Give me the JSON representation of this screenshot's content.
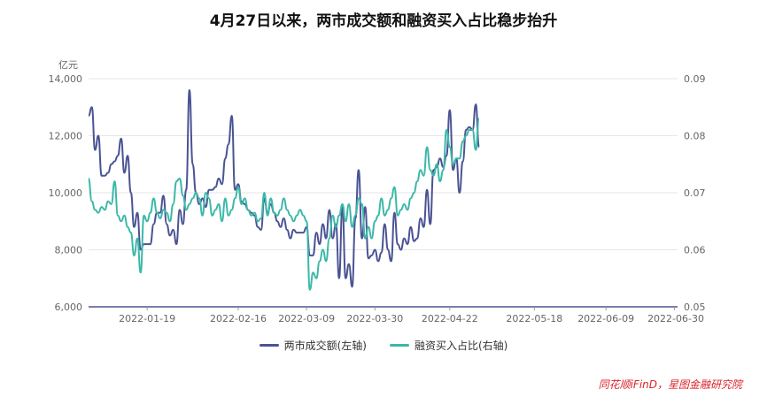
{
  "title": "4月27日以来，两市成交额和融资买入占比稳步抬升",
  "source": "同花顺iFinD，星图金融研究院",
  "chart_data": {
    "type": "line",
    "title": "4月27日以来，两市成交额和融资买入占比稳步抬升",
    "y_left_unit": "亿元",
    "y_left_lim": [
      6000,
      14000
    ],
    "y_left_ticks": [
      "6,000",
      "8,000",
      "10,000",
      "12,000",
      "14,000"
    ],
    "y_right_lim": [
      0.05,
      0.09
    ],
    "y_right_ticks": [
      "0.05",
      "0.06",
      "0.07",
      "0.08",
      "0.09"
    ],
    "x_start": "2022-01-01",
    "x_end": "2022-07-01",
    "x_ticks": [
      "2022-01-19",
      "2022-02-16",
      "2022-03-09",
      "2022-03-30",
      "2022-04-22",
      "2022-05-18",
      "2022-06-09",
      "2022-06-30"
    ],
    "grid": true,
    "legend_position": "bottom",
    "series": [
      {
        "name": "两市成交额(左轴)",
        "axis": "left",
        "color": "#4a5394",
        "points": [
          [
            "2022-01-01",
            12700
          ],
          [
            "2022-01-02",
            13000
          ],
          [
            "2022-01-03",
            11500
          ],
          [
            "2022-01-04",
            12000
          ],
          [
            "2022-01-05",
            10600
          ],
          [
            "2022-01-06",
            10600
          ],
          [
            "2022-01-07",
            10700
          ],
          [
            "2022-01-08",
            11000
          ],
          [
            "2022-01-09",
            11100
          ],
          [
            "2022-01-10",
            11300
          ],
          [
            "2022-01-11",
            11900
          ],
          [
            "2022-01-12",
            10700
          ],
          [
            "2022-01-13",
            11300
          ],
          [
            "2022-01-14",
            10000
          ],
          [
            "2022-01-15",
            8800
          ],
          [
            "2022-01-16",
            9300
          ],
          [
            "2022-01-17",
            8000
          ],
          [
            "2022-01-18",
            8200
          ],
          [
            "2022-01-19",
            8200
          ],
          [
            "2022-01-20",
            8200
          ],
          [
            "2022-01-21",
            8900
          ],
          [
            "2022-01-22",
            9300
          ],
          [
            "2022-01-23",
            9300
          ],
          [
            "2022-01-24",
            9900
          ],
          [
            "2022-01-25",
            8900
          ],
          [
            "2022-01-26",
            8500
          ],
          [
            "2022-01-27",
            8700
          ],
          [
            "2022-01-28",
            8200
          ],
          [
            "2022-01-29",
            9400
          ],
          [
            "2022-01-30",
            8900
          ],
          [
            "2022-01-31",
            10100
          ],
          [
            "2022-02-01",
            13600
          ],
          [
            "2022-02-02",
            11000
          ],
          [
            "2022-02-03",
            10000
          ],
          [
            "2022-02-04",
            9600
          ],
          [
            "2022-02-05",
            9800
          ],
          [
            "2022-02-06",
            9500
          ],
          [
            "2022-02-07",
            10100
          ],
          [
            "2022-02-08",
            10100
          ],
          [
            "2022-02-09",
            10200
          ],
          [
            "2022-02-10",
            10500
          ],
          [
            "2022-02-11",
            10300
          ],
          [
            "2022-02-12",
            11200
          ],
          [
            "2022-02-13",
            11700
          ],
          [
            "2022-02-14",
            12700
          ],
          [
            "2022-02-15",
            10100
          ],
          [
            "2022-02-16",
            10300
          ],
          [
            "2022-02-17",
            9700
          ],
          [
            "2022-02-18",
            9600
          ],
          [
            "2022-02-19",
            9400
          ],
          [
            "2022-02-20",
            9300
          ],
          [
            "2022-02-21",
            9200
          ],
          [
            "2022-02-22",
            8800
          ],
          [
            "2022-02-23",
            8700
          ],
          [
            "2022-02-24",
            9800
          ],
          [
            "2022-02-25",
            9300
          ],
          [
            "2022-02-26",
            9600
          ],
          [
            "2022-02-27",
            9300
          ],
          [
            "2022-02-28",
            9000
          ],
          [
            "2022-03-01",
            8800
          ],
          [
            "2022-03-02",
            9100
          ],
          [
            "2022-03-03",
            8700
          ],
          [
            "2022-03-04",
            8400
          ],
          [
            "2022-03-05",
            8700
          ],
          [
            "2022-03-06",
            8600
          ],
          [
            "2022-03-07",
            8600
          ],
          [
            "2022-03-08",
            8600
          ],
          [
            "2022-03-09",
            8800
          ],
          [
            "2022-03-10",
            7800
          ],
          [
            "2022-03-11",
            7800
          ],
          [
            "2022-03-12",
            8600
          ],
          [
            "2022-03-13",
            8200
          ],
          [
            "2022-03-14",
            8900
          ],
          [
            "2022-03-15",
            8400
          ],
          [
            "2022-03-16",
            9400
          ],
          [
            "2022-03-17",
            8400
          ],
          [
            "2022-03-18",
            8900
          ],
          [
            "2022-03-19",
            7000
          ],
          [
            "2022-03-20",
            9500
          ],
          [
            "2022-03-21",
            7000
          ],
          [
            "2022-03-22",
            7500
          ],
          [
            "2022-03-23",
            6700
          ],
          [
            "2022-03-24",
            9100
          ],
          [
            "2022-03-25",
            10800
          ],
          [
            "2022-03-26",
            8400
          ],
          [
            "2022-03-27",
            9500
          ],
          [
            "2022-03-28",
            7700
          ],
          [
            "2022-03-29",
            7800
          ],
          [
            "2022-03-30",
            8000
          ],
          [
            "2022-03-31",
            7600
          ],
          [
            "2022-04-01",
            7900
          ],
          [
            "2022-04-02",
            8900
          ],
          [
            "2022-04-03",
            8000
          ],
          [
            "2022-04-04",
            7600
          ],
          [
            "2022-04-05",
            9300
          ],
          [
            "2022-04-06",
            8200
          ],
          [
            "2022-04-07",
            8000
          ],
          [
            "2022-04-08",
            8400
          ],
          [
            "2022-04-09",
            8200
          ],
          [
            "2022-04-10",
            8800
          ],
          [
            "2022-04-11",
            8300
          ],
          [
            "2022-04-12",
            8400
          ],
          [
            "2022-04-13",
            9100
          ],
          [
            "2022-04-14",
            8800
          ],
          [
            "2022-04-15",
            10100
          ],
          [
            "2022-04-16",
            8900
          ],
          [
            "2022-04-17",
            10800
          ],
          [
            "2022-04-18",
            10900
          ],
          [
            "2022-04-19",
            11200
          ],
          [
            "2022-04-20",
            10900
          ],
          [
            "2022-04-21",
            11300
          ],
          [
            "2022-04-22",
            12900
          ],
          [
            "2022-04-23",
            10800
          ],
          [
            "2022-04-24",
            11200
          ],
          [
            "2022-04-25",
            10000
          ],
          [
            "2022-04-26",
            11100
          ],
          [
            "2022-04-27",
            12200
          ],
          [
            "2022-04-28",
            12300
          ],
          [
            "2022-04-29",
            12200
          ],
          [
            "2022-04-30",
            13100
          ],
          [
            "2022-05-01",
            11600
          ]
        ]
      },
      {
        "name": "融资买入占比(右轴)",
        "axis": "right",
        "color": "#3cb8a8",
        "points": [
          [
            "2022-01-01",
            0.0725
          ],
          [
            "2022-01-02",
            0.0685
          ],
          [
            "2022-01-03",
            0.067
          ],
          [
            "2022-01-04",
            0.0665
          ],
          [
            "2022-01-05",
            0.0675
          ],
          [
            "2022-01-06",
            0.067
          ],
          [
            "2022-01-07",
            0.0685
          ],
          [
            "2022-01-08",
            0.068
          ],
          [
            "2022-01-09",
            0.072
          ],
          [
            "2022-01-10",
            0.066
          ],
          [
            "2022-01-11",
            0.065
          ],
          [
            "2022-01-12",
            0.066
          ],
          [
            "2022-01-13",
            0.064
          ],
          [
            "2022-01-14",
            0.063
          ],
          [
            "2022-01-15",
            0.059
          ],
          [
            "2022-01-16",
            0.062
          ],
          [
            "2022-01-17",
            0.056
          ],
          [
            "2022-01-18",
            0.066
          ],
          [
            "2022-01-19",
            0.065
          ],
          [
            "2022-01-20",
            0.0665
          ],
          [
            "2022-01-21",
            0.069
          ],
          [
            "2022-01-22",
            0.0665
          ],
          [
            "2022-01-23",
            0.0655
          ],
          [
            "2022-01-24",
            0.067
          ],
          [
            "2022-01-25",
            0.0665
          ],
          [
            "2022-01-26",
            0.065
          ],
          [
            "2022-01-27",
            0.068
          ],
          [
            "2022-01-28",
            0.072
          ],
          [
            "2022-01-29",
            0.0725
          ],
          [
            "2022-01-30",
            0.0695
          ],
          [
            "2022-01-31",
            0.067
          ],
          [
            "2022-02-01",
            0.068
          ],
          [
            "2022-02-02",
            0.069
          ],
          [
            "2022-02-03",
            0.07
          ],
          [
            "2022-02-04",
            0.069
          ],
          [
            "2022-02-05",
            0.066
          ],
          [
            "2022-02-06",
            0.07
          ],
          [
            "2022-02-07",
            0.069
          ],
          [
            "2022-02-08",
            0.066
          ],
          [
            "2022-02-09",
            0.067
          ],
          [
            "2022-02-10",
            0.068
          ],
          [
            "2022-02-11",
            0.065
          ],
          [
            "2022-02-12",
            0.069
          ],
          [
            "2022-02-13",
            0.066
          ],
          [
            "2022-02-14",
            0.067
          ],
          [
            "2022-02-15",
            0.069
          ],
          [
            "2022-02-16",
            0.071
          ],
          [
            "2022-02-17",
            0.068
          ],
          [
            "2022-02-18",
            0.069
          ],
          [
            "2022-02-19",
            0.067
          ],
          [
            "2022-02-20",
            0.066
          ],
          [
            "2022-02-21",
            0.0665
          ],
          [
            "2022-02-22",
            0.065
          ],
          [
            "2022-02-23",
            0.0655
          ],
          [
            "2022-02-24",
            0.07
          ],
          [
            "2022-02-25",
            0.066
          ],
          [
            "2022-02-26",
            0.069
          ],
          [
            "2022-02-27",
            0.0665
          ],
          [
            "2022-02-28",
            0.066
          ],
          [
            "2022-03-01",
            0.067
          ],
          [
            "2022-03-02",
            0.069
          ],
          [
            "2022-03-03",
            0.067
          ],
          [
            "2022-03-04",
            0.066
          ],
          [
            "2022-03-05",
            0.065
          ],
          [
            "2022-03-06",
            0.066
          ],
          [
            "2022-03-07",
            0.067
          ],
          [
            "2022-03-08",
            0.066
          ],
          [
            "2022-03-09",
            0.065
          ],
          [
            "2022-03-10",
            0.053
          ],
          [
            "2022-03-11",
            0.056
          ],
          [
            "2022-03-12",
            0.055
          ],
          [
            "2022-03-13",
            0.058
          ],
          [
            "2022-03-14",
            0.06
          ],
          [
            "2022-03-15",
            0.058
          ],
          [
            "2022-03-16",
            0.062
          ],
          [
            "2022-03-17",
            0.066
          ],
          [
            "2022-03-18",
            0.064
          ],
          [
            "2022-03-19",
            0.066
          ],
          [
            "2022-03-20",
            0.068
          ],
          [
            "2022-03-21",
            0.065
          ],
          [
            "2022-03-22",
            0.068
          ],
          [
            "2022-03-23",
            0.064
          ],
          [
            "2022-03-24",
            0.066
          ],
          [
            "2022-03-25",
            0.069
          ],
          [
            "2022-03-26",
            0.068
          ],
          [
            "2022-03-27",
            0.062
          ],
          [
            "2022-03-28",
            0.064
          ],
          [
            "2022-03-29",
            0.062
          ],
          [
            "2022-03-30",
            0.065
          ],
          [
            "2022-03-31",
            0.066
          ],
          [
            "2022-04-01",
            0.069
          ],
          [
            "2022-04-02",
            0.066
          ],
          [
            "2022-04-03",
            0.067
          ],
          [
            "2022-04-04",
            0.069
          ],
          [
            "2022-04-05",
            0.071
          ],
          [
            "2022-04-06",
            0.066
          ],
          [
            "2022-04-07",
            0.067
          ],
          [
            "2022-04-08",
            0.068
          ],
          [
            "2022-04-09",
            0.067
          ],
          [
            "2022-04-10",
            0.069
          ],
          [
            "2022-04-11",
            0.07
          ],
          [
            "2022-04-12",
            0.072
          ],
          [
            "2022-04-13",
            0.074
          ],
          [
            "2022-04-14",
            0.073
          ],
          [
            "2022-04-15",
            0.078
          ],
          [
            "2022-04-16",
            0.074
          ],
          [
            "2022-04-17",
            0.073
          ],
          [
            "2022-04-18",
            0.075
          ],
          [
            "2022-04-19",
            0.072
          ],
          [
            "2022-04-20",
            0.074
          ],
          [
            "2022-04-21",
            0.081
          ],
          [
            "2022-04-22",
            0.078
          ],
          [
            "2022-04-23",
            0.075
          ],
          [
            "2022-04-24",
            0.076
          ],
          [
            "2022-04-25",
            0.076
          ],
          [
            "2022-04-26",
            0.079
          ],
          [
            "2022-04-27",
            0.08
          ],
          [
            "2022-04-28",
            0.081
          ],
          [
            "2022-04-29",
            0.081
          ],
          [
            "2022-04-30",
            0.0775
          ],
          [
            "2022-05-01",
            0.083
          ]
        ]
      }
    ]
  },
  "legend": [
    {
      "label": "两市成交额(左轴)",
      "color": "#4a5394"
    },
    {
      "label": "融资买入占比(右轴)",
      "color": "#3cb8a8"
    }
  ]
}
